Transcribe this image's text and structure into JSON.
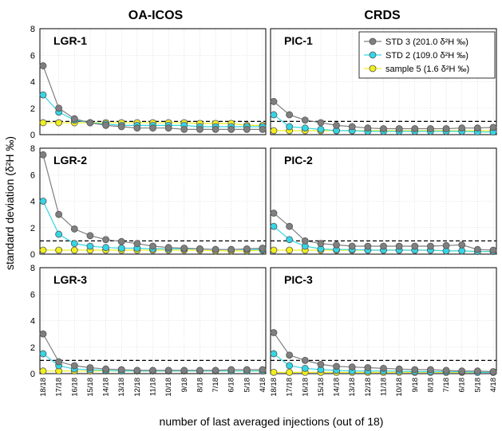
{
  "colors": {
    "std3": "#7f7f7f",
    "std2": "#33d6e6",
    "sample5": "#f2ef1f",
    "grid": "#d9d9d9",
    "threshold": "#000000"
  },
  "chart_data": {
    "type": "line",
    "columns": [
      "OA-ICOS",
      "CRDS"
    ],
    "ylabel": "standard deviation (δ²H ‰)",
    "xlabel": "number of last averaged injections (out of 18)",
    "ylim": [
      0,
      8
    ],
    "yticks": [
      0,
      2,
      4,
      6,
      8
    ],
    "threshold": 1,
    "grid": true,
    "legend_position": "top-right",
    "categories": [
      "18/18",
      "17/18",
      "16/18",
      "15/18",
      "14/18",
      "13/18",
      "12/18",
      "11/18",
      "10/18",
      "9/18",
      "8/18",
      "7/18",
      "6/18",
      "5/18",
      "4/18"
    ],
    "series_names": [
      "STD 3 (201.0 δ²H ‰)",
      "STD 2 (109.0 δ²H ‰)",
      "sample 5 (1.6 δ²H ‰)"
    ],
    "panels": [
      {
        "label": "LGR-1",
        "series": [
          {
            "name": "STD 3 (201.0 δ²H ‰)",
            "values": [
              5.2,
              2.0,
              1.2,
              0.9,
              0.7,
              0.6,
              0.5,
              0.5,
              0.5,
              0.4,
              0.4,
              0.4,
              0.4,
              0.4,
              0.4
            ]
          },
          {
            "name": "STD 2 (109.0 δ²H ‰)",
            "values": [
              3.0,
              1.7,
              1.1,
              0.9,
              0.8,
              0.7,
              0.7,
              0.7,
              0.7,
              0.7,
              0.6,
              0.6,
              0.6,
              0.6,
              0.6
            ]
          },
          {
            "name": "sample 5 (1.6 δ²H ‰)",
            "values": [
              0.9,
              0.9,
              0.9,
              0.9,
              0.9,
              0.9,
              0.9,
              0.9,
              0.9,
              0.9,
              0.85,
              0.85,
              0.85,
              0.7,
              0.7
            ]
          }
        ]
      },
      {
        "label": "PIC-1",
        "series": [
          {
            "name": "STD 3 (201.0 δ²H ‰)",
            "values": [
              2.5,
              1.5,
              1.1,
              0.9,
              0.7,
              0.6,
              0.5,
              0.45,
              0.45,
              0.45,
              0.45,
              0.45,
              0.5,
              0.5,
              0.55
            ]
          },
          {
            "name": "STD 2 (109.0 δ²H ‰)",
            "values": [
              1.5,
              0.6,
              0.5,
              0.4,
              0.3,
              0.3,
              0.25,
              0.25,
              0.25,
              0.25,
              0.25,
              0.25,
              0.25,
              0.2,
              0.2
            ]
          },
          {
            "name": "sample 5 (1.6 δ²H ‰)",
            "values": [
              0.3,
              0.3,
              0.3,
              0.3,
              0.3,
              0.3,
              0.3,
              0.3,
              0.3,
              0.3,
              0.3,
              0.3,
              0.3,
              0.3,
              0.3
            ]
          }
        ]
      },
      {
        "label": "LGR-2",
        "series": [
          {
            "name": "STD 3 (201.0 δ²H ‰)",
            "values": [
              7.5,
              3.0,
              1.9,
              1.4,
              1.1,
              0.95,
              0.8,
              0.6,
              0.5,
              0.45,
              0.4,
              0.35,
              0.35,
              0.4,
              0.45
            ]
          },
          {
            "name": "STD 2 (109.0 δ²H ‰)",
            "values": [
              4.0,
              1.5,
              0.8,
              0.6,
              0.5,
              0.45,
              0.45,
              0.4,
              0.4,
              0.4,
              0.4,
              0.35,
              0.35,
              0.35,
              0.35
            ]
          },
          {
            "name": "sample 5 (1.6 δ²H ‰)",
            "values": [
              0.3,
              0.3,
              0.3,
              0.3,
              0.3,
              0.3,
              0.3,
              0.3,
              0.3,
              0.3,
              0.3,
              0.25,
              0.25,
              0.25,
              0.3
            ]
          }
        ]
      },
      {
        "label": "PIC-2",
        "series": [
          {
            "name": "STD 3 (201.0 δ²H ‰)",
            "values": [
              3.1,
              2.1,
              1.0,
              0.8,
              0.7,
              0.6,
              0.6,
              0.6,
              0.6,
              0.6,
              0.6,
              0.65,
              0.7,
              0.35,
              0.3
            ]
          },
          {
            "name": "STD 2 (109.0 δ²H ‰)",
            "values": [
              2.1,
              1.1,
              0.6,
              0.4,
              0.35,
              0.35,
              0.3,
              0.3,
              0.3,
              0.3,
              0.3,
              0.25,
              0.25,
              0.2,
              0.2
            ]
          },
          {
            "name": "sample 5 (1.6 δ²H ‰)",
            "values": [
              0.3,
              0.3,
              0.3,
              0.3,
              0.3,
              0.3,
              0.3,
              0.3,
              0.3,
              0.3,
              0.3,
              0.25,
              0.25,
              0.2,
              0.2
            ]
          }
        ]
      },
      {
        "label": "LGR-3",
        "series": [
          {
            "name": "STD 3 (201.0 δ²H ‰)",
            "values": [
              3.0,
              0.9,
              0.6,
              0.45,
              0.35,
              0.3,
              0.25,
              0.25,
              0.25,
              0.25,
              0.25,
              0.25,
              0.3,
              0.3,
              0.3
            ]
          },
          {
            "name": "STD 2 (109.0 δ²H ‰)",
            "values": [
              1.5,
              0.6,
              0.35,
              0.3,
              0.25,
              0.2,
              0.2,
              0.2,
              0.2,
              0.2,
              0.2,
              0.2,
              0.2,
              0.2,
              0.2
            ]
          },
          {
            "name": "sample 5 (1.6 δ²H ‰)",
            "values": [
              0.2,
              0.2,
              0.2,
              0.2,
              0.2,
              0.2,
              0.2,
              0.2,
              0.2,
              0.2,
              0.2,
              0.2,
              0.2,
              0.2,
              0.2
            ]
          }
        ]
      },
      {
        "label": "PIC-3",
        "series": [
          {
            "name": "STD 3 (201.0 δ²H ‰)",
            "values": [
              3.1,
              1.4,
              1.0,
              0.7,
              0.55,
              0.5,
              0.45,
              0.4,
              0.35,
              0.3,
              0.3,
              0.25,
              0.2,
              0.2,
              0.15
            ]
          },
          {
            "name": "STD 2 (109.0 δ²H ‰)",
            "values": [
              1.5,
              0.6,
              0.4,
              0.3,
              0.25,
              0.2,
              0.2,
              0.2,
              0.2,
              0.15,
              0.15,
              0.15,
              0.15,
              0.1,
              0.1
            ]
          },
          {
            "name": "sample 5 (1.6 δ²H ‰)",
            "values": [
              0.1,
              0.1,
              0.1,
              0.1,
              0.1,
              0.1,
              0.1,
              0.1,
              0.1,
              0.1,
              0.1,
              0.1,
              0.1,
              0.1,
              0.1
            ]
          }
        ]
      }
    ]
  }
}
